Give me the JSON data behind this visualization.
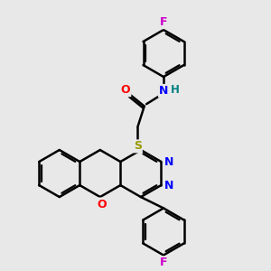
{
  "bg_color": "#e8e8e8",
  "bond_color": "#000000",
  "bond_width": 1.8,
  "atom_colors": {
    "F": "#cc00cc",
    "O": "#ff0000",
    "N": "#0000ff",
    "S": "#999900",
    "H": "#008080"
  },
  "figsize": [
    3.0,
    3.0
  ],
  "dpi": 100
}
